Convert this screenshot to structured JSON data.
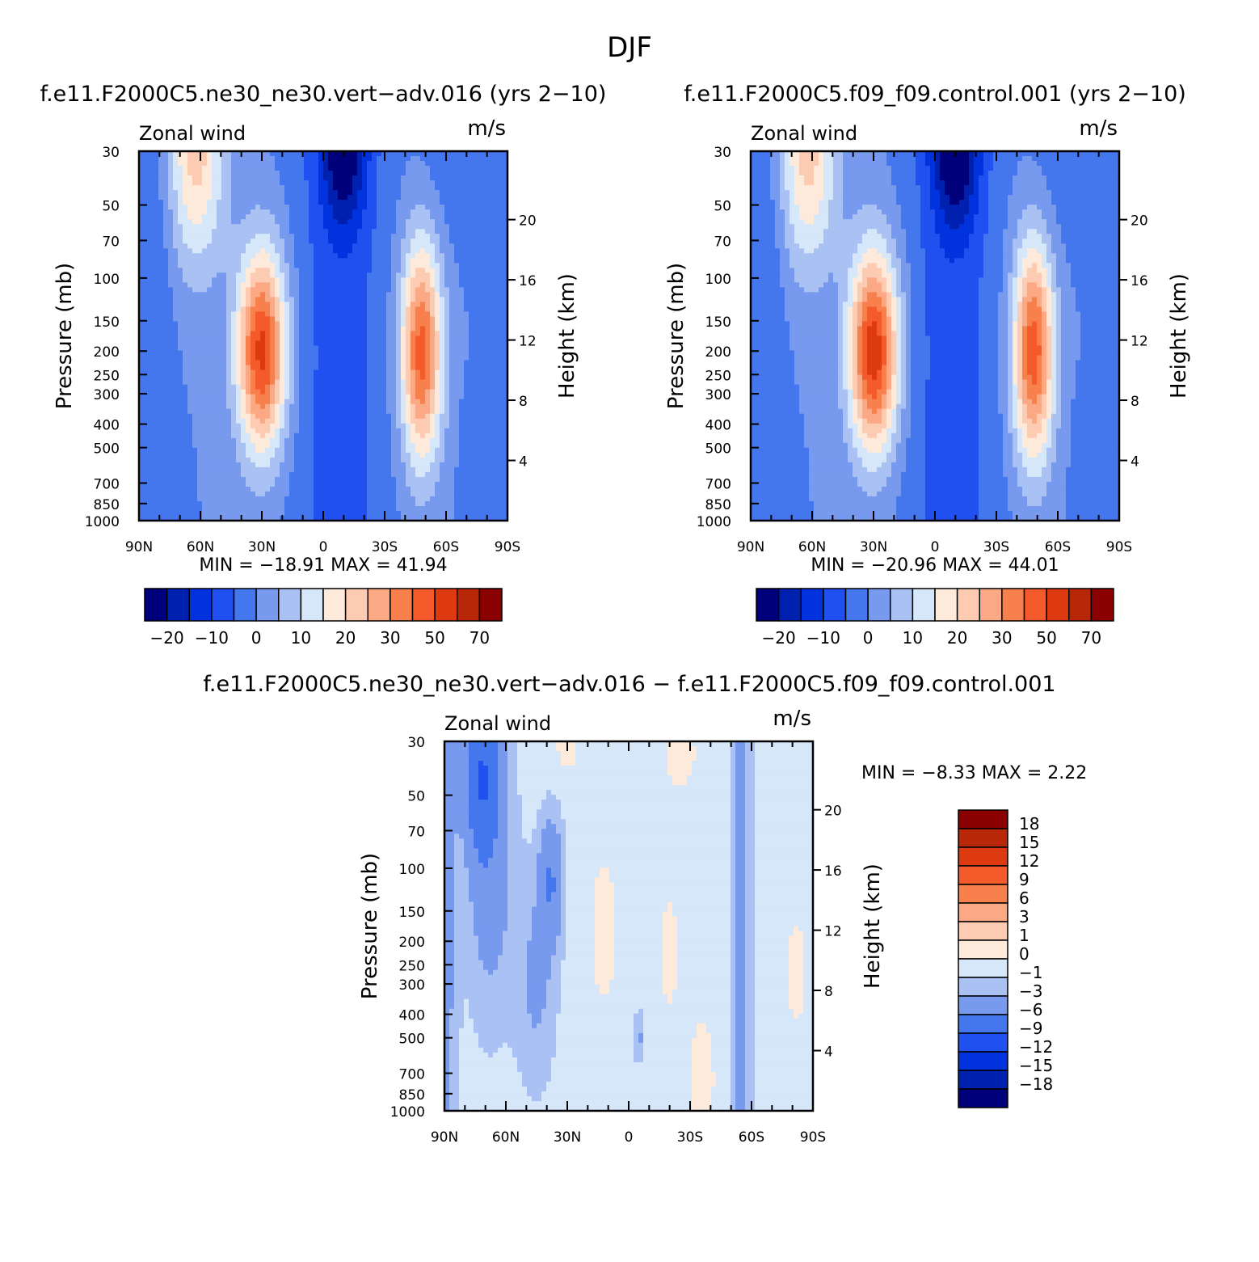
{
  "figure_title": "DJF",
  "chart_data": [
    {
      "type": "heatmap",
      "id": "panel1",
      "title": "f.e11.F2000C5.ne30_ne30.vert−adv.016 (yrs 2−10)",
      "left_label": "Zonal wind",
      "units": "m/s",
      "ylabel": "Pressure (mb)",
      "ylabel_right": "Height (km)",
      "x_ticks": [
        "90N",
        "60N",
        "30N",
        "0",
        "30S",
        "60S",
        "90S"
      ],
      "x_values": [
        90,
        60,
        30,
        0,
        -30,
        -60,
        -90
      ],
      "y_ticks": [
        "30",
        "50",
        "70",
        "100",
        "150",
        "200",
        "250",
        "300",
        "400",
        "500",
        "700",
        "850",
        "1000"
      ],
      "y_values": [
        30,
        50,
        70,
        100,
        150,
        200,
        250,
        300,
        400,
        500,
        700,
        850,
        1000
      ],
      "right_ticks": [
        "20",
        "16",
        "12",
        "8",
        "4"
      ],
      "right_values": [
        20,
        16,
        12,
        8,
        4
      ],
      "ylim": [
        1000,
        30
      ],
      "stats": "MIN = −18.91   MAX =  41.94",
      "min": -18.91,
      "max": 41.94,
      "jets": [
        {
          "lat": 30,
          "p_core": 200,
          "peak": 41.9
        },
        {
          "lat": -48,
          "p_core": 200,
          "peak": 37.5
        }
      ],
      "contour_levels": [
        -25,
        -20,
        -15,
        -10,
        -5,
        0,
        5,
        10,
        15,
        20,
        25,
        30,
        35,
        40,
        50,
        60,
        70
      ],
      "colorbar": {
        "orientation": "horizontal",
        "tick_labels": [
          "−20",
          "−10",
          "0",
          "10",
          "20",
          "30",
          "50",
          "70"
        ],
        "colors": [
          "#00007a",
          "#0020b0",
          "#0033dd",
          "#2050f0",
          "#4477ee",
          "#7799ee",
          "#aac1f4",
          "#d6e7f9",
          "#feeada",
          "#fdcbb2",
          "#fba985",
          "#f7804c",
          "#f55a2b",
          "#dd3a0f",
          "#b82808",
          "#8b0000"
        ]
      }
    },
    {
      "type": "heatmap",
      "id": "panel2",
      "title": "f.e11.F2000C5.f09_f09.control.001 (yrs 2−10)",
      "left_label": "Zonal wind",
      "units": "m/s",
      "ylabel": "Pressure (mb)",
      "ylabel_right": "Height (km)",
      "x_ticks": [
        "90N",
        "60N",
        "30N",
        "0",
        "30S",
        "60S",
        "90S"
      ],
      "x_values": [
        90,
        60,
        30,
        0,
        -30,
        -60,
        -90
      ],
      "y_ticks": [
        "30",
        "50",
        "70",
        "100",
        "150",
        "200",
        "250",
        "300",
        "400",
        "500",
        "700",
        "850",
        "1000"
      ],
      "y_values": [
        30,
        50,
        70,
        100,
        150,
        200,
        250,
        300,
        400,
        500,
        700,
        850,
        1000
      ],
      "right_ticks": [
        "20",
        "16",
        "12",
        "8",
        "4"
      ],
      "right_values": [
        20,
        16,
        12,
        8,
        4
      ],
      "ylim": [
        1000,
        30
      ],
      "stats": "MIN = −20.96   MAX =  44.01",
      "min": -20.96,
      "max": 44.01,
      "jets": [
        {
          "lat": 30,
          "p_core": 200,
          "peak": 44.0
        },
        {
          "lat": -48,
          "p_core": 200,
          "peak": 38.5
        }
      ],
      "contour_levels": [
        -25,
        -20,
        -15,
        -10,
        -5,
        0,
        5,
        10,
        15,
        20,
        25,
        30,
        35,
        40,
        50,
        60,
        70
      ],
      "colorbar": {
        "orientation": "horizontal",
        "tick_labels": [
          "−20",
          "−10",
          "0",
          "10",
          "20",
          "30",
          "50",
          "70"
        ],
        "colors": [
          "#00007a",
          "#0020b0",
          "#0033dd",
          "#2050f0",
          "#4477ee",
          "#7799ee",
          "#aac1f4",
          "#d6e7f9",
          "#feeada",
          "#fdcbb2",
          "#fba985",
          "#f7804c",
          "#f55a2b",
          "#dd3a0f",
          "#b82808",
          "#8b0000"
        ]
      }
    },
    {
      "type": "heatmap",
      "id": "panel3",
      "title": "f.e11.F2000C5.ne30_ne30.vert−adv.016 − f.e11.F2000C5.f09_f09.control.001",
      "left_label": "Zonal wind",
      "units": "m/s",
      "ylabel": "Pressure (mb)",
      "ylabel_right": "Height (km)",
      "x_ticks": [
        "90N",
        "60N",
        "30N",
        "0",
        "30S",
        "60S",
        "90S"
      ],
      "x_values": [
        90,
        60,
        30,
        0,
        -30,
        -60,
        -90
      ],
      "y_ticks": [
        "30",
        "50",
        "70",
        "100",
        "150",
        "200",
        "250",
        "300",
        "400",
        "500",
        "700",
        "850",
        "1000"
      ],
      "y_values": [
        30,
        50,
        70,
        100,
        150,
        200,
        250,
        300,
        400,
        500,
        700,
        850,
        1000
      ],
      "right_ticks": [
        "20",
        "16",
        "12",
        "8",
        "4"
      ],
      "right_values": [
        20,
        16,
        12,
        8,
        4
      ],
      "ylim": [
        1000,
        30
      ],
      "stats": "MIN =   −8.33   MAX =    2.22",
      "min": -8.33,
      "max": 2.22,
      "contour_levels": [
        -18,
        -15,
        -12,
        -9,
        -6,
        -3,
        -1,
        0,
        1,
        3,
        6,
        9,
        12,
        15,
        18
      ],
      "colorbar": {
        "orientation": "vertical",
        "tick_labels": [
          "18",
          "15",
          "12",
          "9",
          "6",
          "3",
          "1",
          "0",
          "−1",
          "−3",
          "−6",
          "−9",
          "−12",
          "−15",
          "−18"
        ],
        "colors": [
          "#8b0000",
          "#b82808",
          "#dd3a0f",
          "#f55a2b",
          "#f7804c",
          "#fba985",
          "#fdcbb2",
          "#feeada",
          "#d6e7f9",
          "#aac1f4",
          "#7799ee",
          "#4477ee",
          "#2050f0",
          "#0033dd",
          "#0020b0",
          "#00007a"
        ]
      }
    }
  ]
}
